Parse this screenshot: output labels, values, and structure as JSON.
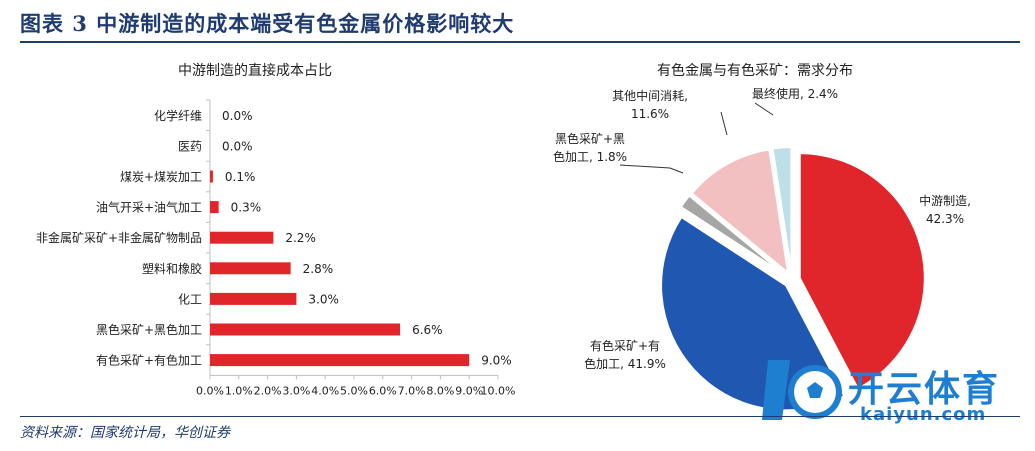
{
  "figure": {
    "title": "图表 3    中游制造的成本端受有色金属价格影响较大",
    "source": "资料来源：国家统计局，华创证券"
  },
  "watermark": {
    "text_main": "开云体育",
    "text_sub": "kaiyun.com",
    "brand_color": "#1e7fd1"
  },
  "chart_data": [
    {
      "type": "bar",
      "orientation": "horizontal",
      "title": "中游制造的直接成本占比",
      "categories": [
        "化学纤维",
        "医药",
        "煤炭+煤炭加工",
        "油气开采+油气加工",
        "非金属矿采矿+非金属矿物制品",
        "塑料和橡胶",
        "化工",
        "黑色采矿+黑色加工",
        "有色采矿+有色加工"
      ],
      "values": [
        0.0,
        0.0,
        0.1,
        0.3,
        2.2,
        2.8,
        3.0,
        6.6,
        9.0
      ],
      "value_labels": [
        "0.0%",
        "0.0%",
        "0.1%",
        "0.3%",
        "2.2%",
        "2.8%",
        "3.0%",
        "6.6%",
        "9.0%"
      ],
      "xlim": [
        0,
        10
      ],
      "xticks": [
        "0.0%",
        "1.0%",
        "2.0%",
        "3.0%",
        "4.0%",
        "5.0%",
        "6.0%",
        "7.0%",
        "8.0%",
        "9.0%",
        "10.0%"
      ],
      "bar_color": "#e0262b",
      "grid": false
    },
    {
      "type": "pie",
      "title": "有色金属与有色采矿：需求分布",
      "slices": [
        {
          "label_line1": "中游制造,",
          "label_line2": "42.3%",
          "value": 42.3,
          "color": "#e0262b",
          "exploded": true
        },
        {
          "label_line1": "有色采矿+有",
          "label_line2": "色加工, 41.9%",
          "value": 41.9,
          "color": "#2057b0",
          "exploded": true
        },
        {
          "label_line1": "黑色采矿+黑",
          "label_line2": "色加工, 1.8%",
          "value": 1.8,
          "color": "#a6a6a6",
          "exploded": true
        },
        {
          "label_line1": "其他中间消耗,",
          "label_line2": "11.6%",
          "value": 11.6,
          "color": "#f2c0c0",
          "exploded": true
        },
        {
          "label_line1": "最终使用, 2.4%",
          "label_line2": "",
          "value": 2.4,
          "color": "#bcdfe8",
          "exploded": true
        }
      ],
      "start_angle_deg": 0,
      "direction": "clockwise"
    }
  ]
}
